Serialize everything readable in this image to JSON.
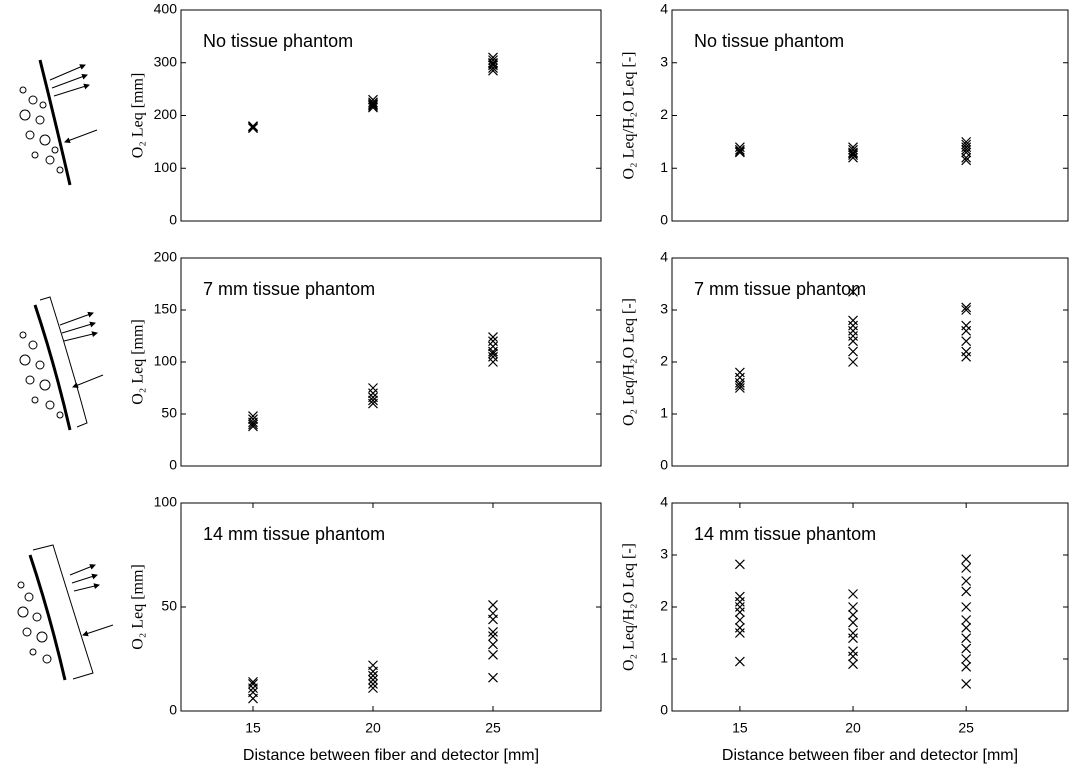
{
  "chart_data": [
    {
      "type": "scatter",
      "title": "No tissue phantom",
      "ylabel": "O₂ Leq [mm]",
      "marker": "x",
      "color": "#000000",
      "x": [
        15,
        15,
        15,
        15,
        20,
        20,
        20,
        20,
        20,
        20,
        25,
        25,
        25,
        25,
        25,
        25,
        25
      ],
      "y": [
        178,
        180,
        176,
        179,
        215,
        220,
        225,
        230,
        222,
        218,
        290,
        295,
        300,
        305,
        310,
        285,
        298
      ],
      "xlim": [
        12,
        29.5
      ],
      "ylim": [
        0,
        400
      ],
      "yticks": [
        0,
        100,
        200,
        300,
        400
      ]
    },
    {
      "type": "scatter",
      "title": "No tissue phantom",
      "ylabel": "O₂ Leq/H₂O Leq [-]",
      "marker": "x",
      "color": "#000000",
      "x": [
        15,
        15,
        15,
        15,
        20,
        20,
        20,
        20,
        20,
        20,
        25,
        25,
        25,
        25,
        25,
        25,
        25
      ],
      "y": [
        1.3,
        1.35,
        1.4,
        1.32,
        1.2,
        1.25,
        1.3,
        1.35,
        1.4,
        1.28,
        1.15,
        1.2,
        1.3,
        1.4,
        1.5,
        1.45,
        1.35
      ],
      "xlim": [
        12,
        29.5
      ],
      "ylim": [
        0,
        4
      ],
      "yticks": [
        0,
        1,
        2,
        3,
        4
      ]
    },
    {
      "type": "scatter",
      "title": "7 mm tissue phantom",
      "ylabel": "O₂ Leq [mm]",
      "marker": "x",
      "color": "#000000",
      "x": [
        15,
        15,
        15,
        15,
        15,
        20,
        20,
        20,
        20,
        20,
        25,
        25,
        25,
        25,
        25,
        25,
        25
      ],
      "y": [
        38,
        42,
        45,
        48,
        40,
        60,
        63,
        66,
        70,
        75,
        100,
        105,
        110,
        115,
        120,
        124,
        108
      ],
      "xlim": [
        12,
        29.5
      ],
      "ylim": [
        0,
        200
      ],
      "yticks": [
        0,
        50,
        100,
        150,
        200
      ]
    },
    {
      "type": "scatter",
      "title": "7 mm tissue phantom",
      "ylabel": "O₂ Leq/H₂O Leq [-]",
      "marker": "x",
      "color": "#000000",
      "x": [
        15,
        15,
        15,
        15,
        15,
        20,
        20,
        20,
        20,
        20,
        20,
        20,
        20,
        25,
        25,
        25,
        25,
        25,
        25,
        25
      ],
      "y": [
        1.5,
        1.6,
        1.7,
        1.8,
        1.55,
        2.0,
        2.2,
        2.4,
        2.5,
        2.6,
        2.7,
        2.8,
        3.35,
        2.1,
        2.2,
        2.4,
        2.6,
        2.7,
        3.0,
        3.05
      ],
      "xlim": [
        12,
        29.5
      ],
      "ylim": [
        0,
        4
      ],
      "yticks": [
        0,
        1,
        2,
        3,
        4
      ]
    },
    {
      "type": "scatter",
      "title": "14 mm tissue phantom",
      "ylabel": "O₂ Leq [mm]",
      "xlabel": "Distance between fiber and detector [mm]",
      "marker": "x",
      "color": "#000000",
      "x": [
        15,
        15,
        15,
        15,
        15,
        20,
        20,
        20,
        20,
        20,
        20,
        25,
        25,
        25,
        25,
        25,
        25,
        25,
        25
      ],
      "y": [
        6,
        9,
        11,
        13,
        14,
        11,
        13,
        15,
        17,
        19,
        22,
        16,
        27,
        32,
        36,
        38,
        44,
        47,
        51
      ],
      "xlim": [
        12,
        29.5
      ],
      "xticks": [
        15,
        20,
        25
      ],
      "ylim": [
        0,
        100
      ],
      "yticks": [
        0,
        50,
        100
      ]
    },
    {
      "type": "scatter",
      "title": "14 mm tissue phantom",
      "ylabel": "O₂ Leq/H₂O Leq [-]",
      "xlabel": "Distance between fiber and detector [mm]",
      "marker": "x",
      "color": "#000000",
      "x": [
        15,
        15,
        15,
        15,
        15,
        15,
        15,
        15,
        15,
        20,
        20,
        20,
        20,
        20,
        20,
        20,
        20,
        20,
        25,
        25,
        25,
        25,
        25,
        25,
        25,
        25,
        25,
        25,
        25,
        25
      ],
      "y": [
        0.95,
        1.5,
        1.6,
        1.75,
        1.9,
        2.0,
        2.1,
        2.2,
        2.82,
        0.9,
        1.05,
        1.15,
        1.4,
        1.5,
        1.7,
        1.85,
        2.0,
        2.25,
        0.52,
        0.85,
        1.0,
        1.2,
        1.4,
        1.6,
        1.75,
        2.0,
        2.3,
        2.5,
        2.75,
        2.92
      ],
      "xlim": [
        12,
        29.5
      ],
      "xticks": [
        15,
        20,
        25
      ],
      "ylim": [
        0,
        4
      ],
      "yticks": [
        0,
        1,
        2,
        3,
        4
      ]
    }
  ]
}
